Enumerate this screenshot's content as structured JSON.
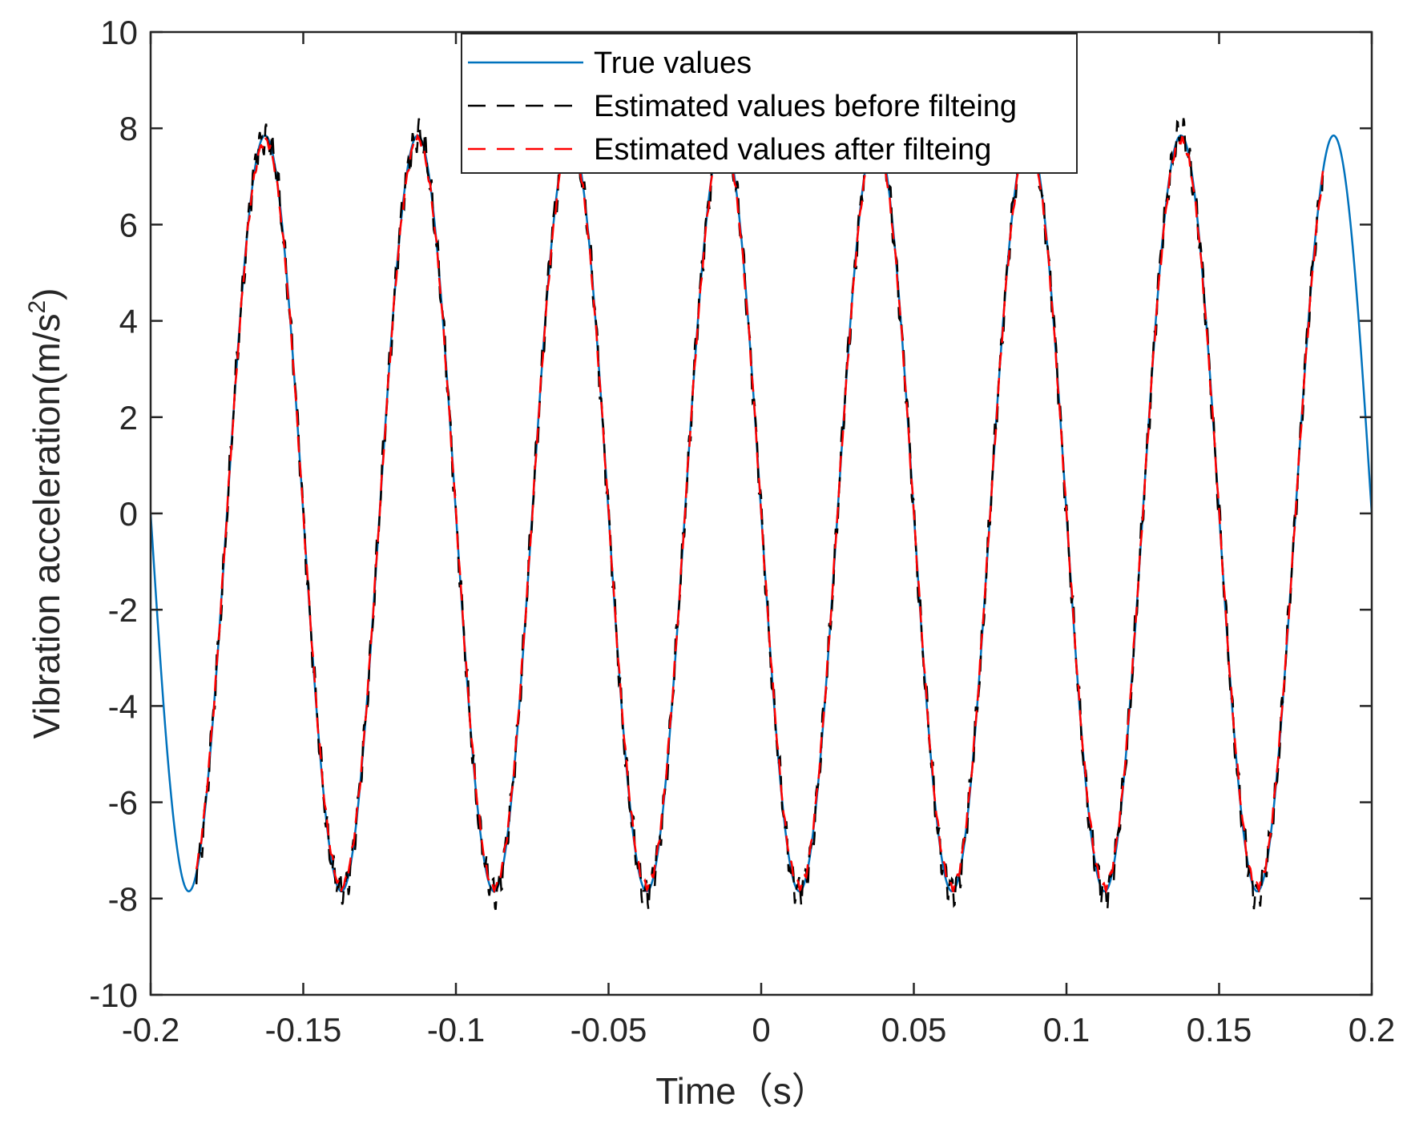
{
  "chart_data": {
    "type": "line",
    "title": "",
    "xlabel": "Time（s）",
    "ylabel": "Vibration acceleration(m/s",
    "ylabel_sup": "2",
    "ylabel_close": ")",
    "xlim": [
      -0.2,
      0.2
    ],
    "ylim": [
      -10,
      10
    ],
    "xticks": [
      -0.2,
      -0.15,
      -0.1,
      -0.05,
      0,
      0.05,
      0.1,
      0.15,
      0.2
    ],
    "xtick_labels": [
      "-0.2",
      "-0.15",
      "-0.1",
      "-0.05",
      "0",
      "0.05",
      "0.1",
      "0.15",
      "0.2"
    ],
    "yticks": [
      -10,
      -8,
      -6,
      -4,
      -2,
      0,
      2,
      4,
      6,
      8,
      10
    ],
    "ytick_labels": [
      "-10",
      "-8",
      "-6",
      "-4",
      "-2",
      "0",
      "2",
      "4",
      "6",
      "8",
      "10"
    ],
    "grid": false,
    "legend_position": "top-center",
    "series": [
      {
        "name": "True values",
        "color": "#0072BD",
        "style": "solid",
        "amplitude": 7.85,
        "frequency_hz": 20,
        "phase_deg": 180,
        "x_start": -0.2,
        "x_end": 0.2
      },
      {
        "name": "Estimated values before filteing",
        "color": "#000000",
        "style": "dashed",
        "amplitude": 7.85,
        "frequency_hz": 20,
        "phase_deg": 180,
        "x_start": -0.185,
        "x_end": 0.184,
        "noise_amplitude": 0.45
      },
      {
        "name": "Estimated values after filteing",
        "color": "#FF0000",
        "style": "dashed",
        "amplitude": 7.75,
        "frequency_hz": 20,
        "phase_deg": 180,
        "x_start": -0.185,
        "x_end": 0.184,
        "noise_amplitude": 0.12
      }
    ]
  }
}
